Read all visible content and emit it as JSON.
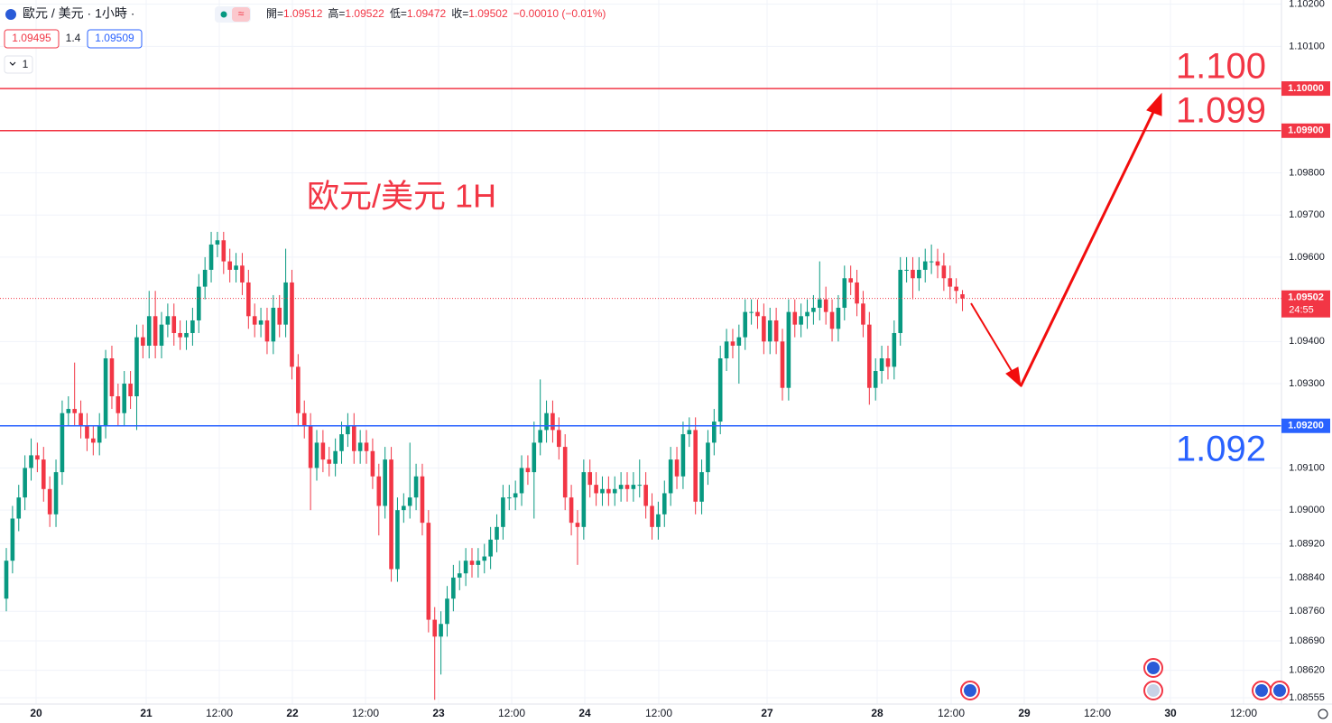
{
  "header": {
    "symbol": "歐元 / 美元 · 1小時 ·",
    "ohlc": [
      {
        "label": "開=",
        "value": "1.09512"
      },
      {
        "label": "高=",
        "value": "1.09522"
      },
      {
        "label": "低=",
        "value": "1.09472"
      },
      {
        "label": "收=",
        "value": "1.09502"
      }
    ],
    "change": "−0.00010 (−0.01%)",
    "bid": "1.09495",
    "spread": "1.4",
    "ask": "1.09509",
    "indicators": "1"
  },
  "chart_data": {
    "type": "candlestick",
    "title": "欧元/美元 1H",
    "x_labels": [
      "20",
      "21",
      "12:00",
      "22",
      "12:00",
      "23",
      "12:00",
      "24",
      "12:00",
      "27",
      "28",
      "12:00",
      "29",
      "12:00",
      "30",
      "12:00"
    ],
    "up_color": "#089981",
    "down_color": "#f23645",
    "series": {
      "open": [
        1.0879,
        1.0888,
        1.0898,
        1.0903,
        1.091,
        1.0913,
        1.0912,
        1.0905,
        1.0899,
        1.0909,
        1.0923,
        1.0924,
        1.0923,
        1.092,
        1.0917,
        1.0916,
        1.092,
        1.0936,
        1.0927,
        1.0923,
        1.093,
        1.0927,
        1.0941,
        1.0939,
        1.0946,
        1.0939,
        1.0944,
        1.0946,
        1.0942,
        1.0941,
        1.0942,
        1.0945,
        1.0953,
        1.0957,
        1.0963,
        1.0964,
        1.0959,
        1.0957,
        1.0958,
        1.0954,
        1.0946,
        1.0944,
        1.0945,
        1.094,
        1.0948,
        1.0944,
        1.0954,
        1.0934,
        1.0923,
        1.092,
        1.091,
        1.0916,
        1.0912,
        1.0911,
        1.0914,
        1.0918,
        1.092,
        1.0914,
        1.0916,
        1.0914,
        1.0908,
        1.0901,
        1.0912,
        1.0886,
        1.09,
        1.0901,
        1.0903,
        1.0908,
        1.0897,
        1.0874,
        1.087,
        1.0873,
        1.0879,
        1.0884,
        1.0885,
        1.0888,
        1.0887,
        1.0888,
        1.0889,
        1.0893,
        1.0896,
        1.0903,
        1.0903,
        1.0904,
        1.091,
        1.0909,
        1.0916,
        1.0919,
        1.0923,
        1.0919,
        1.0915,
        1.0903,
        1.0897,
        1.0896,
        1.0909,
        1.0906,
        1.0904,
        1.0905,
        1.0904,
        1.0905,
        1.0906,
        1.0905,
        1.0906,
        1.0906,
        1.0901,
        1.0896,
        1.0899,
        1.0904,
        1.0912,
        1.0908,
        1.0918,
        1.0919,
        1.0902,
        1.0909,
        1.0916,
        1.0921,
        1.0936,
        1.094,
        1.0939,
        1.0941,
        1.0947,
        1.0947,
        1.0946,
        1.094,
        1.0945,
        1.094,
        1.0929,
        1.0947,
        1.0944,
        1.0946,
        1.0947,
        1.0948,
        1.095,
        1.0947,
        1.0943,
        1.0948,
        1.0955,
        1.0954,
        1.0949,
        1.0944,
        1.0929,
        1.0933,
        1.0936,
        1.0934,
        1.0942,
        1.0957,
        1.0957,
        1.0955,
        1.0957,
        1.0959,
        1.0959,
        1.0958,
        1.0955,
        1.0953,
        1.09512
      ],
      "high": [
        1.0891,
        1.0901,
        1.0906,
        1.0913,
        1.0917,
        1.0916,
        1.0915,
        1.0908,
        1.0912,
        1.0926,
        1.0927,
        1.0935,
        1.0926,
        1.0923,
        1.092,
        1.0923,
        1.0938,
        1.0939,
        1.093,
        1.0933,
        1.0933,
        1.0944,
        1.0944,
        1.0952,
        1.0952,
        1.0947,
        1.0949,
        1.0949,
        1.0945,
        1.0945,
        1.0948,
        1.0956,
        1.096,
        1.0966,
        1.0966,
        1.0966,
        1.0962,
        1.0961,
        1.0961,
        1.0957,
        1.0949,
        1.0948,
        1.0948,
        1.0951,
        1.0951,
        1.0962,
        1.0957,
        1.0937,
        1.0926,
        1.0923,
        1.0919,
        1.0919,
        1.0915,
        1.0917,
        1.0921,
        1.0923,
        1.0923,
        1.0919,
        1.0919,
        1.0917,
        1.0911,
        1.0915,
        1.0915,
        1.0903,
        1.0904,
        1.0916,
        1.0911,
        1.0911,
        1.09,
        1.0877,
        1.0876,
        1.0882,
        1.0887,
        1.0888,
        1.0891,
        1.0891,
        1.0891,
        1.0892,
        1.0896,
        1.0899,
        1.0906,
        1.0906,
        1.0907,
        1.0913,
        1.0913,
        1.0921,
        1.0931,
        1.0926,
        1.0926,
        1.0922,
        1.0918,
        1.0906,
        1.09,
        1.0912,
        1.0912,
        1.0909,
        1.0908,
        1.0908,
        1.0908,
        1.0909,
        1.0909,
        1.0909,
        1.0912,
        1.0909,
        1.0904,
        1.0902,
        1.0907,
        1.0915,
        1.0915,
        1.0921,
        1.0922,
        1.0922,
        1.0912,
        1.0919,
        1.0924,
        1.0939,
        1.0943,
        1.0943,
        1.0944,
        1.095,
        1.095,
        1.095,
        1.0949,
        1.0948,
        1.0948,
        1.0943,
        1.095,
        1.095,
        1.0949,
        1.095,
        1.0951,
        1.0959,
        1.0953,
        1.095,
        1.0951,
        1.0958,
        1.0958,
        1.0957,
        1.0952,
        1.0947,
        1.0936,
        1.0939,
        1.0939,
        1.0945,
        1.096,
        1.096,
        1.096,
        1.096,
        1.0962,
        1.0963,
        1.0962,
        1.0961,
        1.0958,
        1.0955,
        1.09522
      ],
      "low": [
        1.0876,
        1.0885,
        1.0895,
        1.09,
        1.0907,
        1.0909,
        1.0902,
        1.0896,
        1.0896,
        1.0906,
        1.092,
        1.092,
        1.0917,
        1.0914,
        1.0913,
        1.0913,
        1.0917,
        1.0924,
        1.092,
        1.092,
        1.0924,
        1.0919,
        1.0936,
        1.0936,
        1.0936,
        1.0936,
        1.0941,
        1.0939,
        1.0938,
        1.0938,
        1.0939,
        1.0942,
        1.095,
        1.0954,
        1.096,
        1.0956,
        1.0954,
        1.0954,
        1.0951,
        1.0943,
        1.0941,
        1.0941,
        1.0937,
        1.0937,
        1.0941,
        1.0941,
        1.0931,
        1.092,
        1.0917,
        1.09,
        1.0907,
        1.0909,
        1.0908,
        1.0908,
        1.0911,
        1.0915,
        1.0911,
        1.0911,
        1.0911,
        1.0905,
        1.0894,
        1.0898,
        1.0883,
        1.0883,
        1.0897,
        1.0898,
        1.09,
        1.0894,
        1.0871,
        1.0855,
        1.0861,
        1.087,
        1.0876,
        1.0881,
        1.0882,
        1.0884,
        1.0884,
        1.0885,
        1.0886,
        1.089,
        1.0893,
        1.09,
        1.09,
        1.0901,
        1.0906,
        1.0898,
        1.0913,
        1.0916,
        1.0916,
        1.0912,
        1.09,
        1.0894,
        1.0887,
        1.0893,
        1.0903,
        1.0901,
        1.0901,
        1.0901,
        1.0901,
        1.0902,
        1.0902,
        1.0902,
        1.0903,
        1.0898,
        1.0893,
        1.0893,
        1.0896,
        1.0901,
        1.0905,
        1.0905,
        1.0915,
        1.0899,
        1.0899,
        1.0906,
        1.0913,
        1.0918,
        1.0933,
        1.0936,
        1.093,
        1.0938,
        1.0944,
        1.0943,
        1.0937,
        1.0937,
        1.0937,
        1.0926,
        1.0926,
        1.0941,
        1.0941,
        1.0943,
        1.0944,
        1.0945,
        1.0944,
        1.094,
        1.094,
        1.0945,
        1.0951,
        1.0946,
        1.0941,
        1.0925,
        1.0926,
        1.093,
        1.0931,
        1.0931,
        1.0939,
        1.0954,
        1.095,
        1.0952,
        1.0954,
        1.0956,
        1.0955,
        1.0952,
        1.095,
        1.0949,
        1.09472
      ],
      "close": [
        1.0888,
        1.0898,
        1.0903,
        1.091,
        1.0913,
        1.0912,
        1.0905,
        1.0899,
        1.0909,
        1.0923,
        1.0924,
        1.0923,
        1.092,
        1.0917,
        1.0916,
        1.092,
        1.0936,
        1.0927,
        1.0923,
        1.093,
        1.0927,
        1.0941,
        1.0939,
        1.0946,
        1.0939,
        1.0944,
        1.0946,
        1.0942,
        1.0941,
        1.0942,
        1.0945,
        1.0953,
        1.0957,
        1.0963,
        1.0964,
        1.0959,
        1.0957,
        1.0958,
        1.0954,
        1.0946,
        1.0944,
        1.0945,
        1.094,
        1.0948,
        1.0944,
        1.0954,
        1.0934,
        1.0923,
        1.092,
        1.091,
        1.0916,
        1.0912,
        1.0911,
        1.0914,
        1.0918,
        1.092,
        1.0914,
        1.0916,
        1.0914,
        1.0908,
        1.0901,
        1.0912,
        1.0886,
        1.09,
        1.0901,
        1.0903,
        1.0908,
        1.0897,
        1.0874,
        1.087,
        1.0873,
        1.0879,
        1.0884,
        1.0885,
        1.0888,
        1.0887,
        1.0888,
        1.0889,
        1.0893,
        1.0896,
        1.0903,
        1.0903,
        1.0904,
        1.091,
        1.0909,
        1.0916,
        1.0919,
        1.0923,
        1.0919,
        1.0915,
        1.0903,
        1.0897,
        1.0896,
        1.0909,
        1.0906,
        1.0904,
        1.0905,
        1.0904,
        1.0905,
        1.0906,
        1.0905,
        1.0906,
        1.0906,
        1.0901,
        1.0896,
        1.0899,
        1.0904,
        1.0912,
        1.0908,
        1.0918,
        1.0919,
        1.0902,
        1.0909,
        1.0916,
        1.0921,
        1.0936,
        1.094,
        1.0939,
        1.0941,
        1.0947,
        1.0947,
        1.0946,
        1.094,
        1.0945,
        1.094,
        1.0929,
        1.0947,
        1.0944,
        1.0946,
        1.0947,
        1.0948,
        1.095,
        1.0947,
        1.0943,
        1.0948,
        1.0955,
        1.0954,
        1.0949,
        1.0944,
        1.0929,
        1.0933,
        1.0936,
        1.0934,
        1.0942,
        1.0957,
        1.0957,
        1.0955,
        1.0957,
        1.0959,
        1.0959,
        1.0958,
        1.0955,
        1.0953,
        1.0952,
        1.09502
      ]
    },
    "ylim": [
      1.0854,
      1.1021
    ],
    "yticks": [
      {
        "value": 1.102,
        "label": "1.10200"
      },
      {
        "value": 1.101,
        "label": "1.10100"
      },
      {
        "value": 1.098,
        "label": "1.09800"
      },
      {
        "value": 1.097,
        "label": "1.09700"
      },
      {
        "value": 1.096,
        "label": "1.09600"
      },
      {
        "value": 1.094,
        "label": "1.09400"
      },
      {
        "value": 1.093,
        "label": "1.09300"
      },
      {
        "value": 1.091,
        "label": "1.09100"
      },
      {
        "value": 1.09,
        "label": "1.09000"
      },
      {
        "value": 1.0892,
        "label": "1.08920"
      },
      {
        "value": 1.0884,
        "label": "1.08840"
      },
      {
        "value": 1.0876,
        "label": "1.08760"
      },
      {
        "value": 1.0869,
        "label": "1.08690"
      },
      {
        "value": 1.0862,
        "label": "1.08620"
      },
      {
        "value": 1.08555,
        "label": "1.08555"
      }
    ],
    "grid": true,
    "hlines": [
      {
        "value": 1.1,
        "label": "1.10000",
        "annotation": "1.100",
        "color": "#f23645"
      },
      {
        "value": 1.099,
        "label": "1.09900",
        "annotation": "1.099",
        "color": "#f23645"
      },
      {
        "value": 1.092,
        "label": "1.09200",
        "annotation": "1.092",
        "color": "#2962ff"
      }
    ],
    "last_price": {
      "value": 1.09502,
      "label": "1.09502",
      "countdown": "24:55",
      "color": "#f23645"
    }
  }
}
